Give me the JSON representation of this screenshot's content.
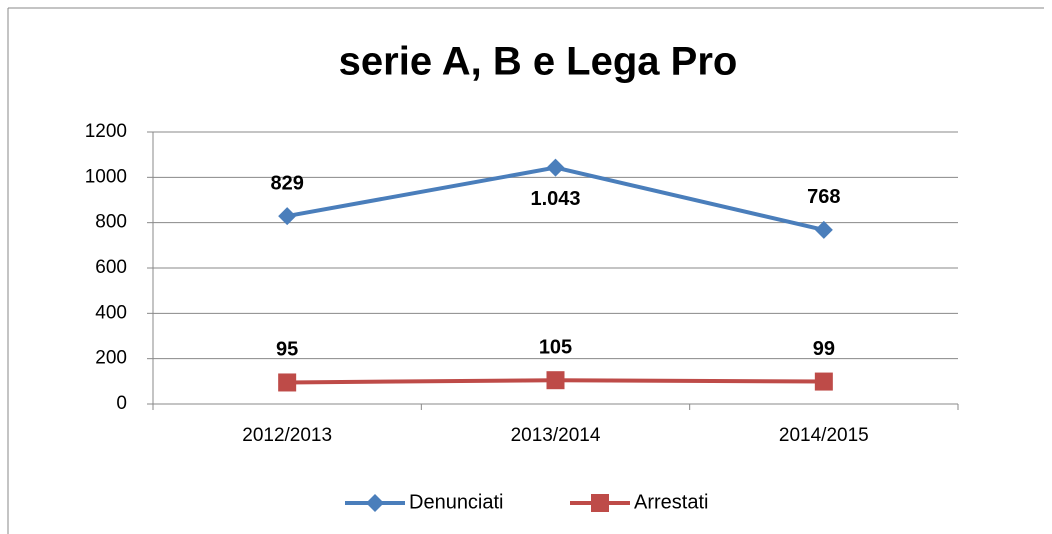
{
  "chart_data": {
    "type": "line",
    "title": "serie A, B e Lega Pro",
    "categories": [
      "2012/2013",
      "2013/2014",
      "2014/2015"
    ],
    "series": [
      {
        "name": "Denunciati",
        "color": "#4a7ebb",
        "marker": "diamond",
        "values": [
          829,
          1043,
          768
        ],
        "value_labels": [
          "829",
          "1.043",
          "768"
        ]
      },
      {
        "name": "Arrestati",
        "color": "#be4b48",
        "marker": "square",
        "values": [
          95,
          105,
          99
        ]
      }
    ],
    "ylim": [
      0,
      1200
    ],
    "yticks": [
      0,
      200,
      400,
      600,
      800,
      1000,
      1200
    ],
    "grid": true,
    "legend": "bottom"
  }
}
